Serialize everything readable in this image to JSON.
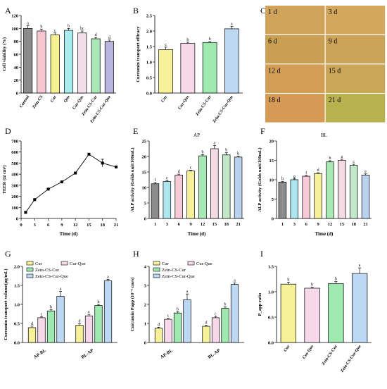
{
  "figure": {
    "panel_labels": [
      "A",
      "B",
      "C",
      "D",
      "E",
      "F",
      "G",
      "H",
      "I"
    ]
  },
  "micro_images": {
    "labels": [
      "1 d",
      "3 d",
      "6 d",
      "9 d",
      "12 d",
      "15 d",
      "18 d",
      "21 d"
    ],
    "colors": [
      "#cfa45a",
      "#d2a85c",
      "#c9a053",
      "#cca459",
      "#d29e55",
      "#caa658",
      "#d69a57",
      "#b9b04e"
    ]
  },
  "chart_data": [
    {
      "id": "A",
      "type": "bar",
      "ylabel": "Cell viability (%)",
      "xlabel": "",
      "ylim": [
        0,
        120
      ],
      "yticks": [
        0,
        20,
        40,
        60,
        80,
        100,
        120
      ],
      "categories": [
        "Control",
        "Zein-CS",
        "Cur",
        "Que",
        "Cur-Que",
        "Zein-CS-Cur",
        "Zein-CS-Cur-Que"
      ],
      "values": [
        100,
        96,
        90,
        97,
        93,
        84,
        80
      ],
      "errors": [
        4,
        3,
        3,
        3,
        3,
        2,
        2
      ],
      "letters": [
        "a",
        "b",
        "c",
        "b",
        "bc",
        "d",
        "d"
      ],
      "colors": [
        "#8c8c8c",
        "#f7c6d0",
        "#f6f08f",
        "#a8ecef",
        "#f3dde8",
        "#a9e7b6",
        "#b9b4dc"
      ],
      "grid": false,
      "legend": "none"
    },
    {
      "id": "B",
      "type": "bar",
      "ylabel": "Curcumin transport efficacy",
      "xlabel": "",
      "ylim": [
        0.0,
        2.5
      ],
      "yticks": [
        0.0,
        0.5,
        1.0,
        1.5,
        2.0,
        2.5
      ],
      "categories": [
        "Cur",
        "Cur-Que",
        "Zein-CS-Cur",
        "Zein-CS-Cur-Que"
      ],
      "values": [
        1.4,
        1.6,
        1.63,
        2.07
      ],
      "errors": [
        0.08,
        0.04,
        0.03,
        0.08
      ],
      "letters": [
        "c",
        "b",
        "b",
        "a"
      ],
      "colors": [
        "#f7f29a",
        "#f6d8ea",
        "#9ee9b0",
        "#bcd8f3"
      ],
      "grid": false,
      "legend": "none"
    },
    {
      "id": "D",
      "type": "line",
      "ylabel": "TEER (Ω cm²)",
      "xlabel": "Time (d)",
      "xlim": [
        0,
        21
      ],
      "xticks": [
        0,
        3,
        6,
        9,
        12,
        15,
        18,
        21
      ],
      "ylim": [
        0,
        700
      ],
      "yticks": [
        0,
        100,
        200,
        300,
        400,
        500,
        600,
        700
      ],
      "x": [
        1,
        3,
        6,
        9,
        12,
        15,
        18,
        21
      ],
      "values": [
        55,
        170,
        265,
        330,
        410,
        580,
        500,
        465
      ],
      "errors": [
        5,
        6,
        6,
        6,
        8,
        10,
        35,
        10
      ],
      "grid": false,
      "legend": "none"
    },
    {
      "id": "E",
      "type": "bar",
      "title": "AP",
      "ylabel": "ALP activity (Golds unit/100mL)",
      "xlabel": "Time (d)",
      "ylim": [
        0,
        25
      ],
      "yticks": [
        0,
        5,
        10,
        15,
        20,
        25
      ],
      "categories": [
        "1",
        "3",
        "6",
        "9",
        "12",
        "15",
        "18",
        "21"
      ],
      "values": [
        11.2,
        11.9,
        14.0,
        15.3,
        20.2,
        22.5,
        20.5,
        19.8
      ],
      "errors": [
        0.4,
        0.3,
        0.3,
        0.3,
        0.4,
        1.0,
        0.7,
        0.3
      ],
      "letters": [
        "f",
        "e",
        "d",
        "c",
        "b",
        "a",
        "b",
        "b"
      ],
      "colors": [
        "#8c8c8c",
        "#aee6f0",
        "#f6c9d6",
        "#f6f09a",
        "#a8e8b6",
        "#f5d9e3",
        "#c1e8c9",
        "#b9d2ee"
      ],
      "grid": false,
      "legend": "none"
    },
    {
      "id": "F",
      "type": "bar",
      "title": "BL",
      "ylabel": "ALP activity (Golds unit/100mL)",
      "xlabel": "Time (d)",
      "ylim": [
        0,
        20
      ],
      "yticks": [
        0,
        5,
        10,
        15,
        20
      ],
      "categories": [
        "1",
        "3",
        "6",
        "9",
        "12",
        "15",
        "18",
        "21"
      ],
      "values": [
        9.4,
        10.0,
        10.9,
        11.6,
        14.6,
        15.0,
        13.7,
        11.2
      ],
      "errors": [
        0.2,
        0.2,
        0.2,
        0.2,
        0.3,
        0.3,
        0.3,
        0.3
      ],
      "letters": [
        "h",
        "g",
        "f",
        "d",
        "b",
        "a",
        "c",
        "e"
      ],
      "colors": [
        "#8c8c8c",
        "#aee6f0",
        "#f6c9d6",
        "#f6f09a",
        "#a8e8b6",
        "#f5d9e3",
        "#c1e8c9",
        "#b9d2ee"
      ],
      "grid": false,
      "legend": "none"
    },
    {
      "id": "G",
      "type": "bar",
      "ylabel": "Curcumin transport volume(µg/mL)",
      "xlabel": "",
      "ylim": [
        0.0,
        2.0
      ],
      "yticks": [
        0.0,
        0.5,
        1.0,
        1.5,
        2.0
      ],
      "categories": [
        "AP-BL",
        "BL-AP"
      ],
      "series": [
        {
          "name": "Cur",
          "values": [
            0.39,
            0.45
          ],
          "errors": [
            0.04,
            0.04
          ],
          "letters": [
            "d",
            "d"
          ],
          "color": "#f7f29a"
        },
        {
          "name": "Cur-Que",
          "values": [
            0.65,
            0.7
          ],
          "errors": [
            0.03,
            0.04
          ],
          "letters": [
            "c",
            "c"
          ],
          "color": "#f6d8ea"
        },
        {
          "name": "Zein-CS-Cur",
          "values": [
            0.83,
            0.97
          ],
          "errors": [
            0.03,
            0.03
          ],
          "letters": [
            "b",
            "b"
          ],
          "color": "#9ee9b0"
        },
        {
          "name": "Zein-CS-Cur-Que",
          "values": [
            1.21,
            1.62
          ],
          "errors": [
            0.13,
            0.04
          ],
          "letters": [
            "a",
            "a"
          ],
          "color": "#bcd8f3"
        }
      ],
      "grid": false,
      "legend": "top-left"
    },
    {
      "id": "H",
      "type": "bar",
      "ylabel": "Curcumin Papp (10⁻⁶ cm/s)",
      "xlabel": "",
      "ylim": [
        0,
        4
      ],
      "yticks": [
        0,
        1,
        2,
        3,
        4
      ],
      "categories": [
        "AP-BL",
        "BL-AP"
      ],
      "series": [
        {
          "name": "Cur",
          "values": [
            0.75,
            0.85
          ],
          "errors": [
            0.05,
            0.05
          ],
          "letters": [
            "d",
            "d"
          ],
          "color": "#f7f29a"
        },
        {
          "name": "Cur-Que",
          "values": [
            1.22,
            1.3
          ],
          "errors": [
            0.05,
            0.06
          ],
          "letters": [
            "c",
            "c"
          ],
          "color": "#f6d8ea"
        },
        {
          "name": "Zein-CS-Cur",
          "values": [
            1.55,
            1.79
          ],
          "errors": [
            0.07,
            0.08
          ],
          "letters": [
            "b",
            "b"
          ],
          "color": "#9ee9b0"
        },
        {
          "name": "Zein-CS-Cur-Que",
          "values": [
            2.25,
            3.05
          ],
          "errors": [
            0.3,
            0.08
          ],
          "letters": [
            "a",
            "a"
          ],
          "color": "#bcd8f3"
        }
      ],
      "grid": false,
      "legend": "top-left"
    },
    {
      "id": "I",
      "type": "bar",
      "ylabel": "P_app ratio",
      "xlabel": "",
      "ylim": [
        0.0,
        1.5
      ],
      "yticks": [
        0.0,
        0.5,
        1.0,
        1.5
      ],
      "categories": [
        "Cur",
        "Cur-Que",
        "Zein-CS-Cur",
        "Zein-CS-Cur-Que"
      ],
      "values": [
        1.15,
        1.07,
        1.16,
        1.36
      ],
      "errors": [
        0.04,
        0.02,
        0.04,
        0.11
      ],
      "letters": [
        "b",
        "b",
        "b",
        "a"
      ],
      "colors": [
        "#f7f29a",
        "#f6d8ea",
        "#9ee9b0",
        "#bcd8f3"
      ],
      "grid": false,
      "legend": "none"
    }
  ]
}
